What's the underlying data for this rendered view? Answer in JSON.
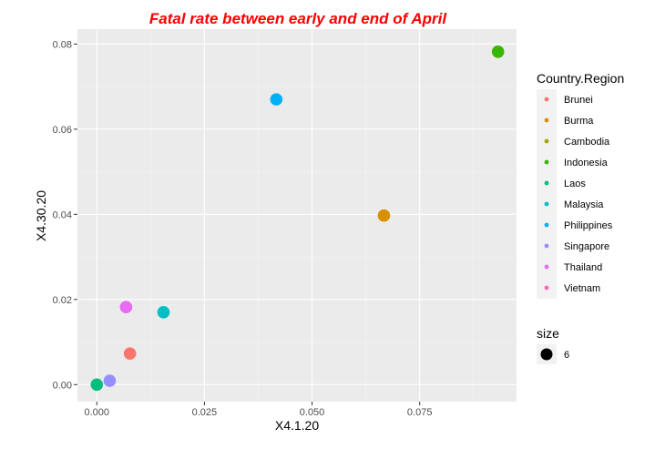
{
  "chart_data": {
    "type": "scatter",
    "title": "Fatal rate between early and end of April",
    "xlabel": "X4.1.20",
    "ylabel": "X4.30.20",
    "xlim": [
      -0.0045,
      0.0975
    ],
    "ylim": [
      -0.004,
      0.0835
    ],
    "x_ticks": [
      0.0,
      0.025,
      0.05,
      0.075
    ],
    "x_tick_labels": [
      "0.000",
      "0.025",
      "0.050",
      "0.075"
    ],
    "y_ticks": [
      0.0,
      0.02,
      0.04,
      0.06,
      0.08
    ],
    "y_tick_labels": [
      "0.00",
      "0.02",
      "0.04",
      "0.06",
      "0.08"
    ],
    "grid": true,
    "legend_title": "Country.Region",
    "legend_position": "right",
    "size_legend": {
      "title": "size",
      "label": "6"
    },
    "series": [
      {
        "name": "Brunei",
        "color": "#F8766D",
        "x": 0.0077,
        "y": 0.0073
      },
      {
        "name": "Burma",
        "color": "#D89000",
        "x": 0.0667,
        "y": 0.0397
      },
      {
        "name": "Cambodia",
        "color": "#A3A500",
        "x": null,
        "y": null
      },
      {
        "name": "Indonesia",
        "color": "#39B600",
        "x": 0.0932,
        "y": 0.0782
      },
      {
        "name": "Laos",
        "color": "#00BF7D",
        "x": 0.0,
        "y": 0.0
      },
      {
        "name": "Malaysia",
        "color": "#00BFC4",
        "x": 0.0155,
        "y": 0.017
      },
      {
        "name": "Philippines",
        "color": "#00B0F6",
        "x": 0.0417,
        "y": 0.067
      },
      {
        "name": "Singapore",
        "color": "#9590FF",
        "x": 0.003,
        "y": 0.0009
      },
      {
        "name": "Thailand",
        "color": "#E76BF3",
        "x": 0.0068,
        "y": 0.0182
      },
      {
        "name": "Vietnam",
        "color": "#FF62BC",
        "x": null,
        "y": null
      }
    ]
  }
}
